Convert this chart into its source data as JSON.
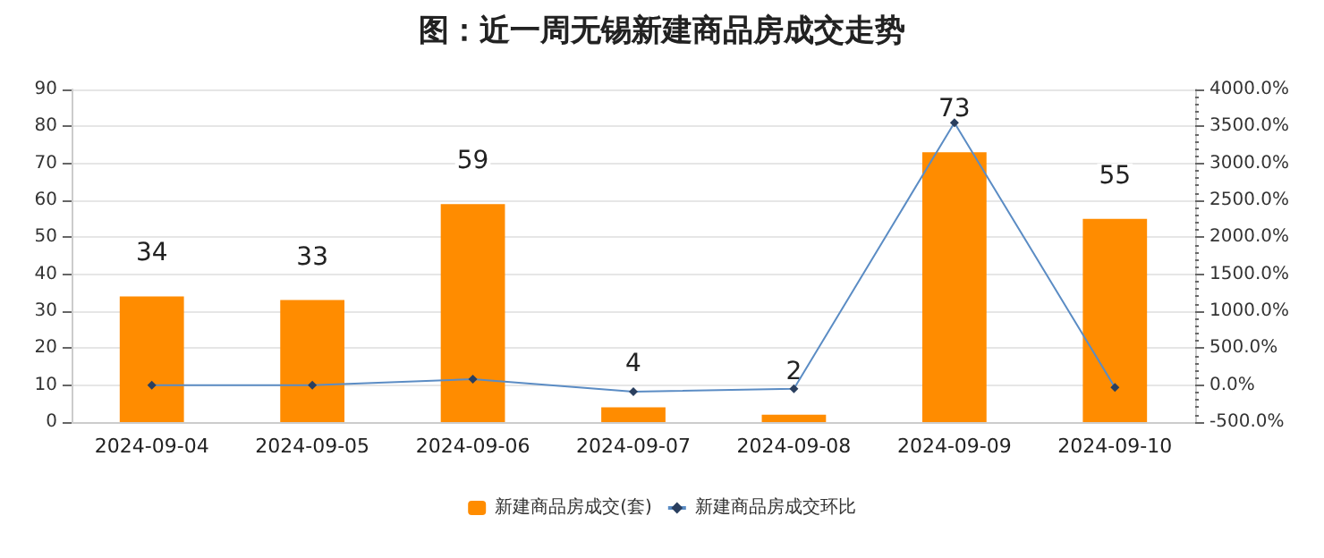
{
  "chart_data": {
    "type": "bar",
    "title": "图：近一周无锡新建商品房成交走势",
    "categories": [
      "2024-09-04",
      "2024-09-05",
      "2024-09-06",
      "2024-09-07",
      "2024-09-08",
      "2024-09-09",
      "2024-09-10"
    ],
    "series": [
      {
        "name": "新建商品房成交(套)",
        "color": "#ff8c00",
        "values": [
          34,
          33,
          59,
          4,
          2,
          73,
          55
        ],
        "value_labels": [
          "34",
          "33",
          "59",
          "4",
          "2",
          "73",
          "55"
        ]
      },
      {
        "name": "新建商品房成交环比",
        "type": "line",
        "axis": "y2",
        "color": "#5b8cc4",
        "marker": "diamond",
        "values": [
          0,
          0,
          80,
          -90,
          -50,
          3550,
          -30
        ]
      }
    ],
    "ylim": [
      0,
      90
    ],
    "yticks": [
      0,
      10,
      20,
      30,
      40,
      50,
      60,
      70,
      80,
      90
    ],
    "y2lim": [
      -500,
      4000
    ],
    "y2ticks": [
      {
        "value": -500,
        "label": "-500.0%"
      },
      {
        "value": 0,
        "label": "0.0%"
      },
      {
        "value": 500,
        "label": "500.0%"
      },
      {
        "value": 1000,
        "label": "1000.0%"
      },
      {
        "value": 1500,
        "label": "1500.0%"
      },
      {
        "value": 2000,
        "label": "2000.0%"
      },
      {
        "value": 2500,
        "label": "2500.0%"
      },
      {
        "value": 3000,
        "label": "3000.0%"
      },
      {
        "value": 3500,
        "label": "3500.0%"
      },
      {
        "value": 4000,
        "label": "4000.0%"
      }
    ],
    "grid": "y",
    "legend": "bottom"
  }
}
